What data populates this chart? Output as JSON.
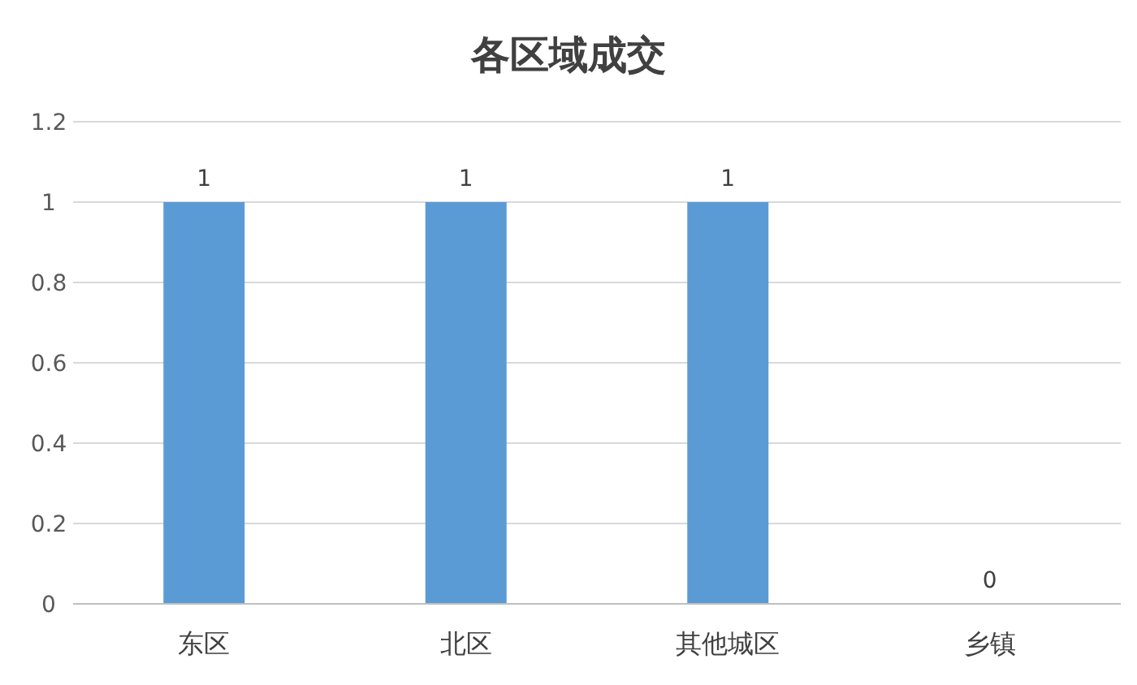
{
  "chart_data": {
    "type": "bar",
    "title": "各区域成交",
    "categories": [
      "东区",
      "北区",
      "其他城区",
      "乡镇"
    ],
    "values": [
      1,
      1,
      1,
      0
    ],
    "color": "#5b9bd5",
    "ylim": [
      0,
      1.2
    ],
    "yticks": [
      0,
      0.2,
      0.4,
      0.6,
      0.8,
      1,
      1.2
    ],
    "grid": "y",
    "data_labels": true,
    "legend": false
  }
}
